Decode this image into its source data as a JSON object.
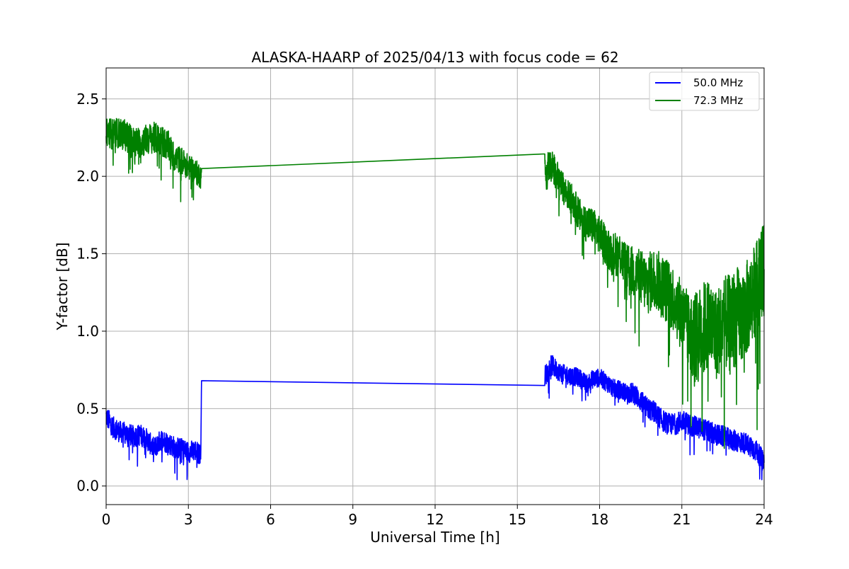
{
  "chart_data": {
    "type": "line",
    "title": "ALASKA-HAARP of 2025/04/13 with focus code = 62",
    "xlabel": "Universal Time [h]",
    "ylabel": "Y-factor [dB]",
    "xlim": [
      0,
      24
    ],
    "ylim": [
      -0.12,
      2.7
    ],
    "xticks": [
      0,
      3,
      6,
      9,
      12,
      15,
      18,
      21,
      24
    ],
    "xtick_labels": [
      "0",
      "3",
      "6",
      "9",
      "12",
      "15",
      "18",
      "21",
      "24"
    ],
    "yticks": [
      0.0,
      0.5,
      1.0,
      1.5,
      2.0,
      2.5
    ],
    "ytick_labels": [
      "0.0",
      "0.5",
      "1.0",
      "1.5",
      "2.0",
      "2.5"
    ],
    "grid": true,
    "legend_position": "top-right",
    "series": [
      {
        "name": "50.0 MHz",
        "color": "#0000ff",
        "x": [
          0.0,
          0.25,
          0.5,
          0.75,
          1.0,
          1.25,
          1.5,
          1.75,
          2.0,
          2.25,
          2.5,
          2.75,
          3.0,
          3.25,
          3.45,
          3.48,
          16.0,
          16.25,
          16.5,
          16.75,
          17.0,
          17.25,
          17.5,
          17.75,
          18.0,
          18.25,
          18.5,
          18.75,
          19.0,
          19.25,
          19.5,
          19.75,
          20.0,
          20.25,
          20.5,
          20.75,
          21.0,
          21.25,
          21.5,
          21.75,
          22.0,
          22.25,
          22.5,
          22.75,
          23.0,
          23.25,
          23.5,
          23.75,
          24.0
        ],
        "y": [
          0.45,
          0.38,
          0.35,
          0.34,
          0.32,
          0.33,
          0.3,
          0.24,
          0.3,
          0.28,
          0.25,
          0.24,
          0.22,
          0.23,
          0.2,
          0.68,
          0.71,
          0.78,
          0.74,
          0.72,
          0.71,
          0.7,
          0.66,
          0.69,
          0.7,
          0.67,
          0.63,
          0.62,
          0.6,
          0.6,
          0.55,
          0.5,
          0.48,
          0.43,
          0.4,
          0.4,
          0.42,
          0.4,
          0.38,
          0.37,
          0.35,
          0.33,
          0.32,
          0.3,
          0.29,
          0.28,
          0.26,
          0.22,
          0.15
        ],
        "noise": [
          0.07,
          0.07,
          0.07,
          0.07,
          0.07,
          0.07,
          0.07,
          0.07,
          0.07,
          0.07,
          0.07,
          0.07,
          0.07,
          0.07,
          0.07,
          0.0,
          0.07,
          0.07,
          0.06,
          0.06,
          0.06,
          0.06,
          0.06,
          0.06,
          0.06,
          0.06,
          0.06,
          0.06,
          0.06,
          0.07,
          0.07,
          0.07,
          0.07,
          0.07,
          0.07,
          0.07,
          0.07,
          0.07,
          0.07,
          0.07,
          0.07,
          0.07,
          0.07,
          0.07,
          0.07,
          0.07,
          0.07,
          0.07,
          0.07
        ]
      },
      {
        "name": "72.3 MHz",
        "color": "#008000",
        "x": [
          0.0,
          0.25,
          0.5,
          0.75,
          1.0,
          1.25,
          1.5,
          1.75,
          2.0,
          2.25,
          2.5,
          2.75,
          3.0,
          3.25,
          3.45,
          3.48,
          16.0,
          16.25,
          16.5,
          16.75,
          17.0,
          17.25,
          17.5,
          17.75,
          18.0,
          18.25,
          18.5,
          18.75,
          19.0,
          19.25,
          19.5,
          19.75,
          20.0,
          20.25,
          20.5,
          20.75,
          21.0,
          21.25,
          21.5,
          21.75,
          22.0,
          22.25,
          22.5,
          22.75,
          23.0,
          23.25,
          23.5,
          23.75,
          24.0
        ],
        "y": [
          2.3,
          2.27,
          2.28,
          2.26,
          2.22,
          2.22,
          2.24,
          2.25,
          2.23,
          2.2,
          2.12,
          2.1,
          2.06,
          2.03,
          2.0,
          2.05,
          2.05,
          2.08,
          1.98,
          1.9,
          1.85,
          1.75,
          1.7,
          1.68,
          1.62,
          1.55,
          1.5,
          1.5,
          1.4,
          1.38,
          1.35,
          1.3,
          1.35,
          1.3,
          1.25,
          1.2,
          1.1,
          1.0,
          0.95,
          1.0,
          1.05,
          0.98,
          1.05,
          1.05,
          1.1,
          1.1,
          1.2,
          1.3,
          1.4
        ],
        "noise": [
          0.1,
          0.1,
          0.1,
          0.1,
          0.1,
          0.1,
          0.1,
          0.1,
          0.1,
          0.1,
          0.09,
          0.09,
          0.08,
          0.08,
          0.08,
          0.0,
          0.11,
          0.1,
          0.1,
          0.1,
          0.1,
          0.11,
          0.12,
          0.12,
          0.12,
          0.13,
          0.14,
          0.15,
          0.16,
          0.17,
          0.18,
          0.2,
          0.2,
          0.2,
          0.22,
          0.22,
          0.24,
          0.25,
          0.3,
          0.32,
          0.3,
          0.3,
          0.3,
          0.32,
          0.32,
          0.32,
          0.3,
          0.3,
          0.3
        ]
      }
    ]
  }
}
